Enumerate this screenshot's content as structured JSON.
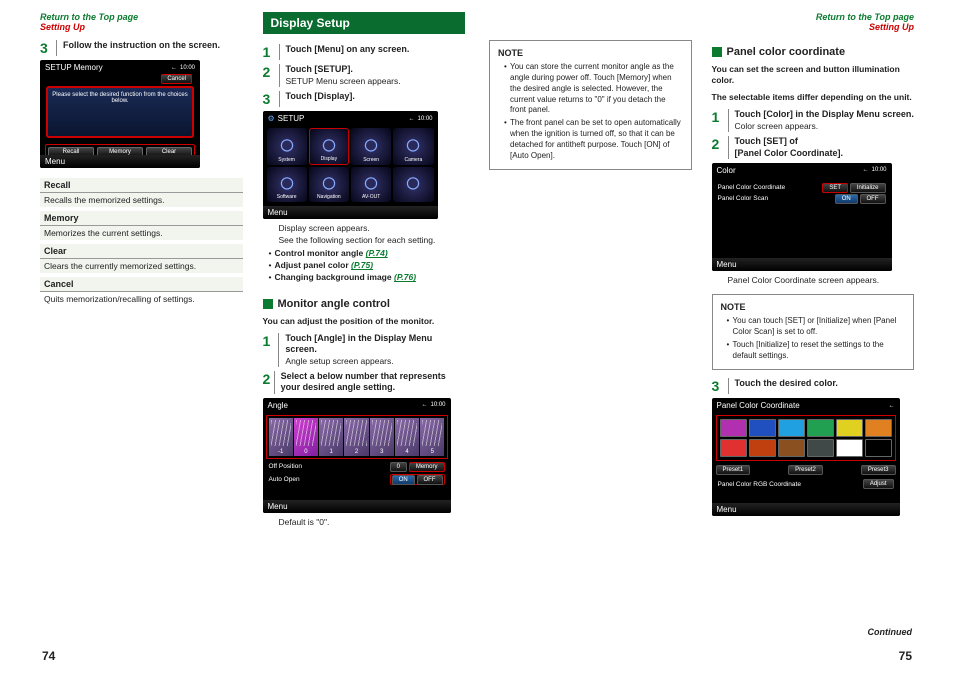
{
  "hdr": {
    "return": "Return to the Top page",
    "bc": "Setting Up"
  },
  "pg": {
    "l": "74",
    "r": "75",
    "cont": "Continued"
  },
  "left1": {
    "step3": "Follow the instruction on the screen.",
    "ssTitle": "SETUP Memory",
    "ssMenu": "Menu",
    "dlg": "Please select the desired function from the choices below.",
    "cancel": "Cancel",
    "b1": "Recall",
    "b2": "Memory",
    "b3": "Clear",
    "defs": [
      {
        "t": "Recall",
        "d": "Recalls the memorized settings."
      },
      {
        "t": "Memory",
        "d": "Memorizes the current settings."
      },
      {
        "t": "Clear",
        "d": "Clears the currently memorized settings."
      },
      {
        "t": "Cancel",
        "d": "Quits memorization/recalling of settings."
      }
    ]
  },
  "left2": {
    "hdr": "Display Setup",
    "s1": "Touch [Menu] on any screen.",
    "s2": "Touch [SETUP].",
    "s2sub": "SETUP Menu screen appears.",
    "s3": "Touch [Display].",
    "ssTitle": "SETUP",
    "ssMenu": "Menu",
    "grid": [
      "System",
      "Display",
      "Screen",
      "Camera",
      "Software",
      "Navigation",
      "AV-OUT",
      ""
    ],
    "post1": "Display screen appears.",
    "post2": "See the following section for each setting.",
    "l1": "Control monitor angle",
    "l1p": "(P.74)",
    "l2": "Adjust panel color",
    "l2p": "(P.75)",
    "l3": "Changing background image",
    "l3p": "(P.76)",
    "subA": "Monitor angle control",
    "introA": "You can adjust the position of the monitor.",
    "a1": "Touch [Angle] in the Display Menu screen.",
    "a1sub": "Angle setup screen appears.",
    "a2": "Select a below number that represents your desired angle setting.",
    "ssTitle2": "Angle",
    "nums": [
      "-1",
      "0",
      "1",
      "2",
      "3",
      "4",
      "5"
    ],
    "r1l": "Off Position",
    "r1v": "0",
    "r1b": "Memory",
    "r2l": "Auto Open",
    "r2on": "ON",
    "r2off": "OFF",
    "def": "Default is \"0\"."
  },
  "right1": {
    "note": "NOTE",
    "n1": "You can store the current monitor angle as the angle during power off. Touch [Memory] when the desired angle is selected.\nHowever, the current value returns to \"0\" if you detach the front panel.",
    "n2": "The front panel can be set to open automatically when the ignition is turned off, so that it can be detached for antitheft purpose. Touch [ON] of [Auto Open]."
  },
  "right2": {
    "subB": "Panel color coordinate",
    "introB1": "You can set the screen and button illumination color.",
    "introB2": "The selectable items differ depending on the unit.",
    "b1": "Touch [Color] in the Display Menu screen.",
    "b1sub": "Color screen appears.",
    "b2a": "Touch [SET] of",
    "b2b": "[Panel Color Coordinate].",
    "ssTitle": "Color",
    "ssMenu": "Menu",
    "o1": "Panel Color Coordinate",
    "set": "SET",
    "init": "Initialize",
    "o2": "Panel Color Scan",
    "on": "ON",
    "off": "OFF",
    "post": "Panel Color Coordinate screen appears.",
    "note": "NOTE",
    "n1": "You can touch [SET] or [Initialize] when [Panel Color Scan] is set to off.",
    "n2": "Touch [Initialize] to reset the settings to the default settings.",
    "s3": "Touch the desired color.",
    "ssTitle2": "Panel Color Coordinate",
    "colors": [
      "#b030b0",
      "#2050c0",
      "#20a0e0",
      "#20a050",
      "#e0d020",
      "#e08020",
      "#e03030",
      "#c04010",
      "#8a5020",
      "#404848",
      "#ffffff",
      "#000000"
    ],
    "presets": [
      "Preset1",
      "Preset2",
      "Preset3"
    ],
    "rgbL": "Panel Color RGB Coordinate",
    "rgbB": "Adjust"
  }
}
